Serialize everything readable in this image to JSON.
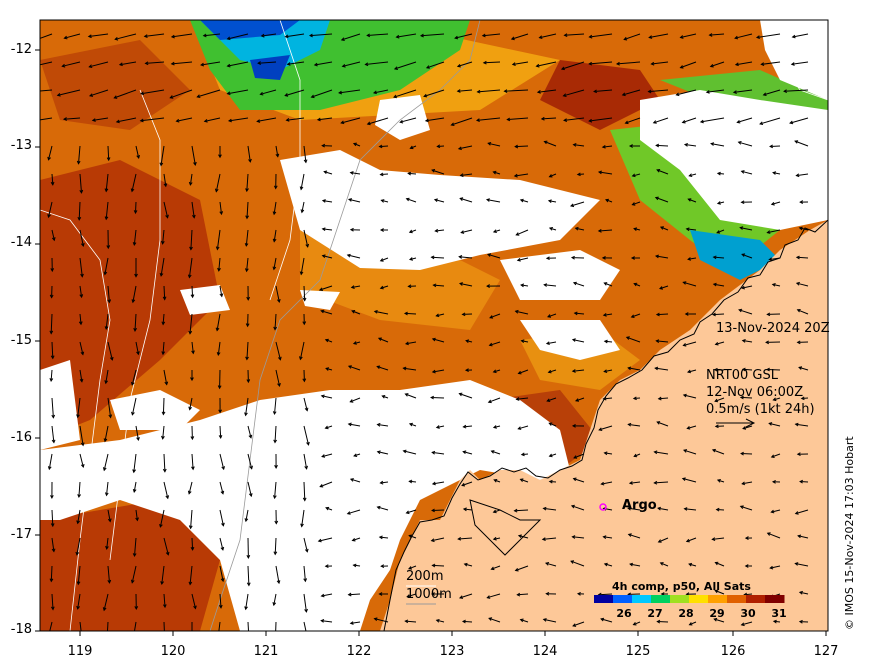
{
  "map": {
    "time_label": "13-Nov-2024 20Z",
    "current_model": "NRT00 GSL",
    "current_time": "12-Nov 06:00Z",
    "current_scale": "0.5m/s (1kt 24h)",
    "argo_label": "Argo",
    "credit": "© IMOS 15-Nov-2024 17:03 Hobart",
    "bathy_200": "200m",
    "bathy_1000": "1000m",
    "x_ticks": [
      "119",
      "120",
      "121",
      "122",
      "123",
      "124",
      "125",
      "126",
      "127"
    ],
    "y_ticks": [
      "-12",
      "-13",
      "-14",
      "-15",
      "-16",
      "-17",
      "-18"
    ],
    "colorbar": {
      "title": "4h comp, p50, All Sats",
      "ticks": [
        "26",
        "27",
        "28",
        "29",
        "30",
        "31"
      ],
      "colors": [
        "#0000a0",
        "#0060ff",
        "#00c8ff",
        "#00d060",
        "#a0e020",
        "#ffe000",
        "#ffa000",
        "#e06000",
        "#b02000",
        "#800000"
      ]
    }
  }
}
